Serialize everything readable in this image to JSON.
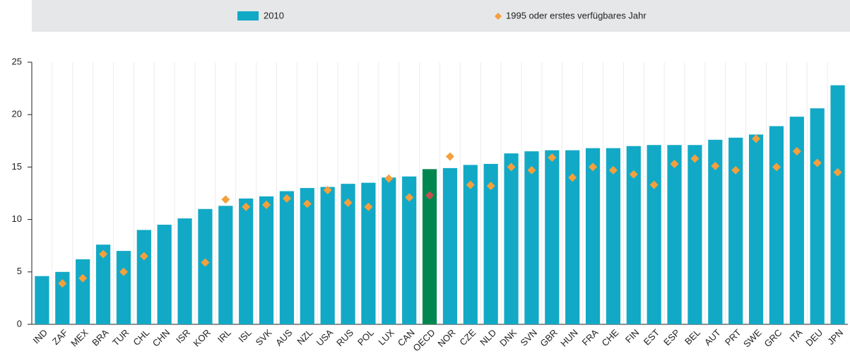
{
  "chart_data": {
    "type": "bar",
    "categories": [
      "IND",
      "ZAF",
      "MEX",
      "BRA",
      "TUR",
      "CHL",
      "CHN",
      "ISR",
      "KOR",
      "IRL",
      "ISL",
      "SVK",
      "AUS",
      "NZL",
      "USA",
      "RUS",
      "POL",
      "LUX",
      "CAN",
      "OECD",
      "NOR",
      "CZE",
      "NLD",
      "DNK",
      "SVN",
      "GBR",
      "HUN",
      "FRA",
      "CHE",
      "FIN",
      "EST",
      "ESP",
      "BEL",
      "AUT",
      "PRT",
      "SWE",
      "GRC",
      "ITA",
      "DEU",
      "JPN"
    ],
    "series": [
      {
        "name": "2010",
        "type": "bar",
        "color": "#12a9c6",
        "highlight_color": "#00874f",
        "values": [
          4.6,
          5.0,
          6.2,
          7.6,
          7.0,
          9.0,
          9.5,
          10.1,
          11.0,
          11.3,
          12.0,
          12.2,
          12.7,
          13.0,
          13.1,
          13.4,
          13.5,
          14.0,
          14.1,
          14.8,
          14.9,
          15.2,
          15.3,
          16.3,
          16.5,
          16.6,
          16.6,
          16.8,
          16.8,
          17.0,
          17.1,
          17.1,
          17.1,
          17.6,
          17.8,
          18.1,
          18.9,
          19.8,
          20.6,
          22.8
        ]
      },
      {
        "name": "1995 oder erstes verfügbares Jahr",
        "type": "marker",
        "color": "#f5a03c",
        "highlight_color": "#c0504d",
        "values": [
          null,
          3.9,
          4.4,
          6.7,
          5.0,
          6.5,
          null,
          null,
          5.9,
          11.9,
          11.2,
          11.4,
          12.0,
          11.5,
          12.8,
          11.6,
          11.2,
          13.9,
          12.1,
          12.3,
          16.0,
          13.3,
          13.2,
          15.0,
          14.7,
          15.9,
          14.0,
          15.0,
          14.7,
          14.3,
          13.3,
          15.3,
          15.8,
          15.1,
          14.7,
          17.7,
          15.0,
          16.5,
          15.4,
          14.5
        ]
      }
    ],
    "highlight_index": 19,
    "ylim": [
      0,
      25
    ],
    "yticks": [
      0,
      5,
      10,
      15,
      20,
      25
    ],
    "grid": false
  }
}
